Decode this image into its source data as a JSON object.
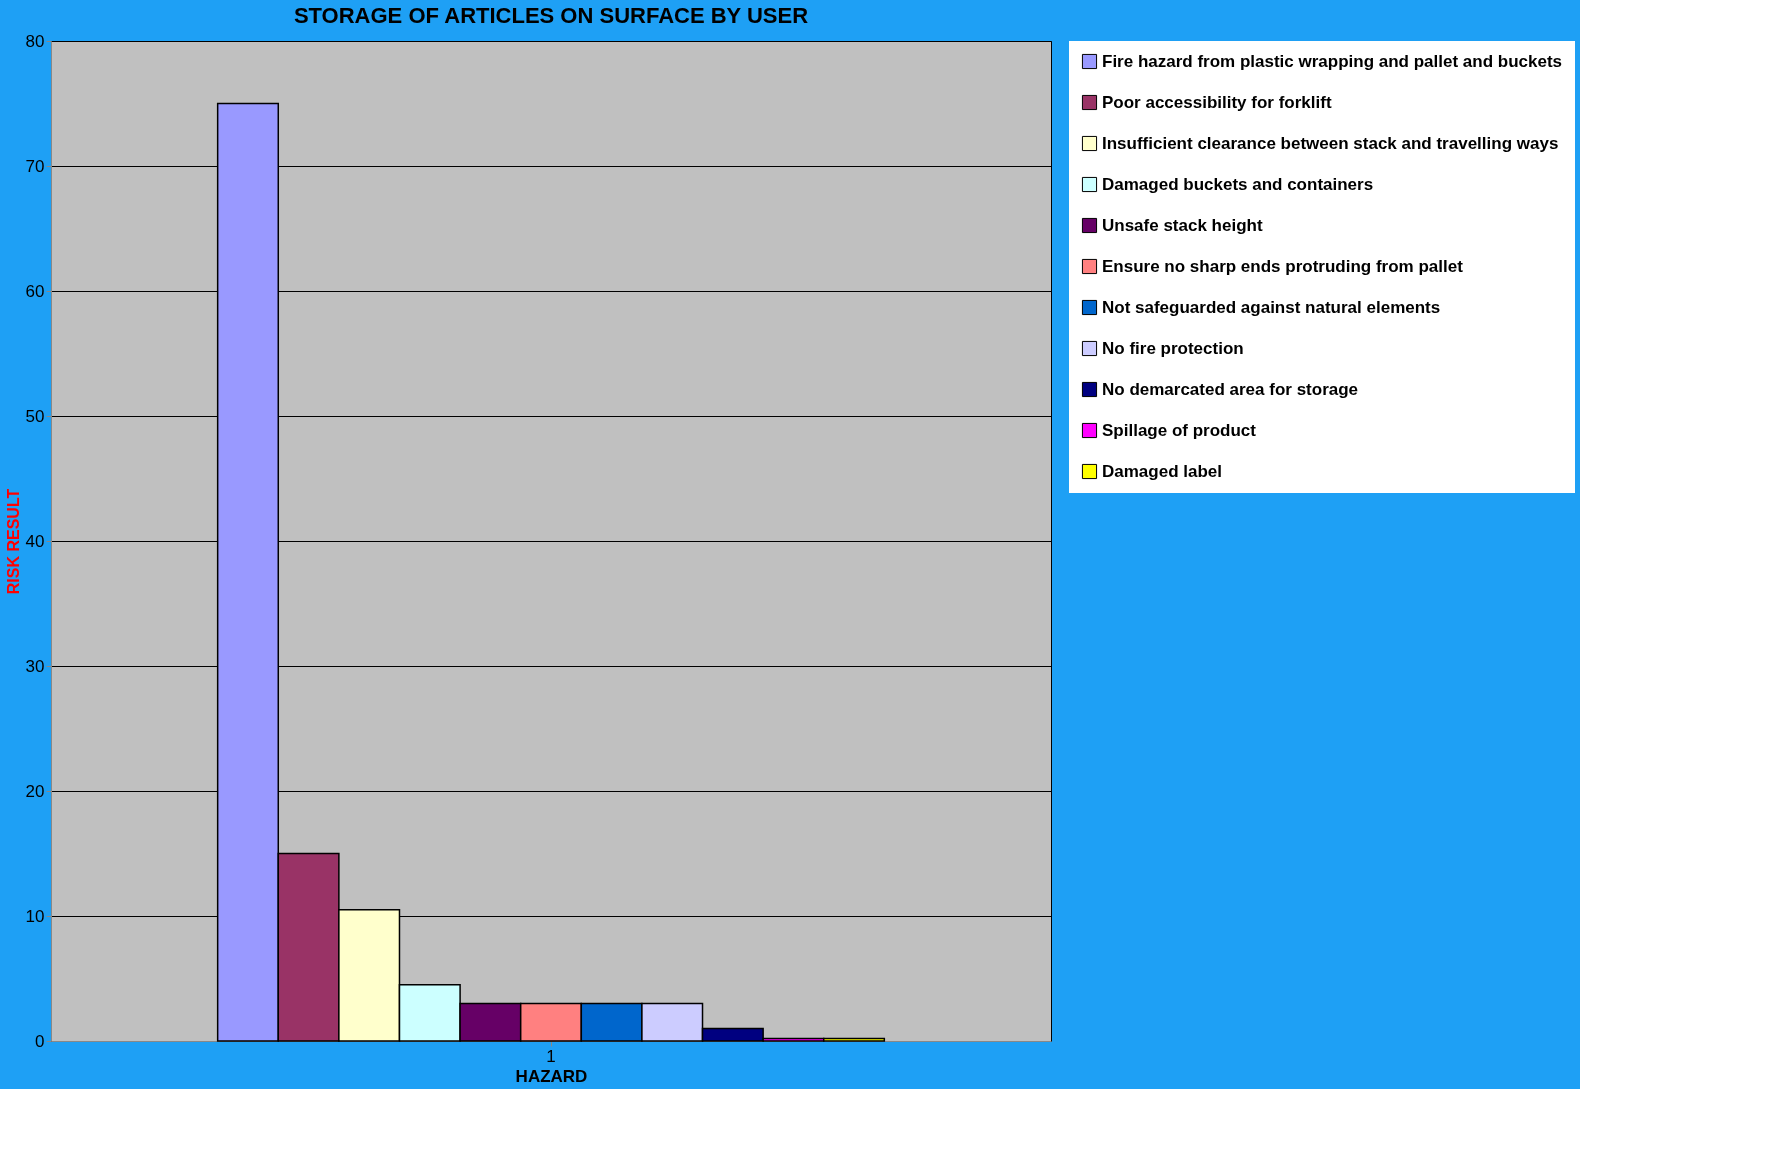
{
  "chart_data": {
    "type": "bar",
    "title": "STORAGE OF ARTICLES ON SURFACE BY USER",
    "xlabel": "HAZARD",
    "ylabel": "RISK RESULT",
    "categories": [
      "1"
    ],
    "series": [
      {
        "name": "Fire hazard from plastic wrapping and pallet and buckets",
        "color": "#9999ff",
        "values": [
          75
        ]
      },
      {
        "name": "Poor accessibility for forklift",
        "color": "#993366",
        "values": [
          15
        ]
      },
      {
        "name": "Insufficient clearance between stack and travelling ways",
        "color": "#ffffcc",
        "values": [
          10.5
        ]
      },
      {
        "name": "Damaged buckets and containers",
        "color": "#ccffff",
        "values": [
          4.5
        ]
      },
      {
        "name": "Unsafe stack height",
        "color": "#660066",
        "values": [
          3
        ]
      },
      {
        "name": "Ensure no sharp ends protruding from pallet",
        "color": "#ff8080",
        "values": [
          3
        ]
      },
      {
        "name": "Not safeguarded against natural elements",
        "color": "#0066cc",
        "values": [
          3
        ]
      },
      {
        "name": "No fire protection",
        "color": "#ccccff",
        "values": [
          3
        ]
      },
      {
        "name": "No demarcated area for storage",
        "color": "#000080",
        "values": [
          1
        ]
      },
      {
        "name": "Spillage of product",
        "color": "#ff00ff",
        "values": [
          0.2
        ]
      },
      {
        "name": "Damaged label",
        "color": "#ffff00",
        "values": [
          0.2
        ]
      }
    ],
    "ylim": [
      0,
      80
    ],
    "yticks": [
      0,
      10,
      20,
      30,
      40,
      50,
      60,
      70,
      80
    ],
    "grid": "y",
    "legend": "right"
  }
}
